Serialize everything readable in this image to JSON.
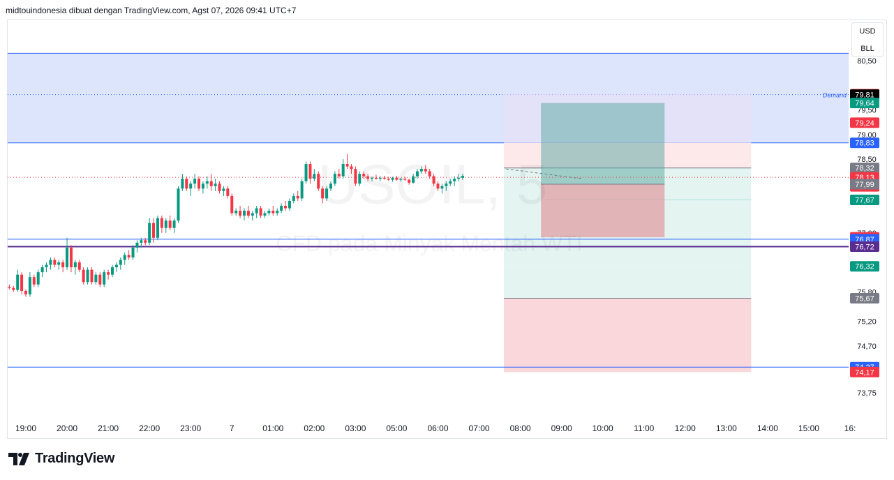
{
  "header": {
    "text": "midtouindonesia dibuat dengan TradingView.com, Agst 07, 2026 09:41 UTC+7"
  },
  "unit_box": {
    "currency": "USD",
    "unit": "BLL"
  },
  "footer": {
    "brand": "TradingView"
  },
  "watermark": {
    "symbol": "USOIL, 5",
    "description": "CFD pada Minyak Mentah WTI"
  },
  "colors": {
    "up": "#089981",
    "down": "#f23645",
    "demand_zone": "#dbe4fd",
    "hline": "#2962ff",
    "purple_line": "#5a2d91",
    "profit": "#b9e4dc",
    "loss": "#f7c9cd"
  },
  "chart_data": {
    "type": "candlestick",
    "symbol": "USOIL",
    "timeframe": "5",
    "price_axis": {
      "ylim": [
        73.4,
        80.95
      ],
      "tick_labels": [
        "80,50",
        "79,50",
        "79,00",
        "78,50",
        "77,00",
        "75,80",
        "75,20",
        "74,70",
        "73,75"
      ],
      "tick_values": [
        80.5,
        79.5,
        79.0,
        78.5,
        77.0,
        75.8,
        75.2,
        74.7,
        73.75
      ]
    },
    "time_axis": {
      "labels": [
        "19:00",
        "20:00",
        "21:00",
        "22:00",
        "23:00",
        "7",
        "01:00",
        "02:00",
        "03:00",
        "05:00",
        "06:00",
        "07:00",
        "08:00",
        "09:00",
        "10:00",
        "11:00",
        "12:00",
        "13:00",
        "14:00",
        "15:00",
        "16:"
      ],
      "hours_since_1900": [
        0,
        1,
        2,
        3,
        4,
        5,
        6,
        7,
        8,
        9,
        10,
        11,
        12,
        13,
        14,
        15,
        16,
        17,
        18,
        19,
        20
      ]
    },
    "price_labels": [
      {
        "text": "79,82",
        "value": 79.82,
        "color": "#f23645"
      },
      {
        "text": "79,81",
        "value": 79.81,
        "color": "#000000"
      },
      {
        "text": "79,64",
        "value": 79.64,
        "color": "#089981"
      },
      {
        "text": "79,24",
        "value": 79.24,
        "color": "#f23645"
      },
      {
        "text": "78,83",
        "value": 78.83,
        "color": "#2962ff"
      },
      {
        "text": "78,32",
        "value": 78.32,
        "color": "#787b86"
      },
      {
        "text": "78,13",
        "value": 78.13,
        "color": "#f23645",
        "sub": "03:56"
      },
      {
        "text": "77,99",
        "value": 77.99,
        "color": "#787b86"
      },
      {
        "text": "77,67",
        "value": 77.67,
        "color": "#089981"
      },
      {
        "text": "76,91",
        "value": 76.91,
        "color": "#f23645"
      },
      {
        "text": "76,87",
        "value": 76.87,
        "color": "#2962ff"
      },
      {
        "text": "76,72",
        "value": 76.72,
        "color": "#5a2d91"
      },
      {
        "text": "76,32",
        "value": 76.32,
        "color": "#089981"
      },
      {
        "text": "75,67",
        "value": 75.67,
        "color": "#787b86"
      },
      {
        "text": "74,27",
        "value": 74.27,
        "color": "#2962ff"
      },
      {
        "text": "74,17",
        "value": 74.17,
        "color": "#f23645"
      }
    ],
    "demand_zone": {
      "label": "Demand",
      "top": 80.65,
      "bottom": 78.83,
      "mid_line": 79.81
    },
    "horizontal_lines": [
      {
        "value": 76.87,
        "color": "#2962ff"
      },
      {
        "value": 76.72,
        "color": "#5a2d91"
      },
      {
        "value": 74.27,
        "color": "#2962ff"
      }
    ],
    "current_price_line": 78.13,
    "positions": [
      {
        "type": "long",
        "start_hours": 11.6,
        "end_hours": 17.6,
        "entry": 78.32,
        "target": 79.82,
        "stop": 74.17,
        "inner_target": 76.32,
        "inner_stop": 75.67
      },
      {
        "type": "long",
        "start_hours": 12.5,
        "end_hours": 15.5,
        "entry": 77.99,
        "target": 79.64,
        "stop": 76.91
      }
    ],
    "candles": [
      [
        -0.4,
        75.9,
        75.95,
        75.85,
        75.88
      ],
      [
        -0.3,
        75.88,
        75.92,
        75.8,
        75.84
      ],
      [
        -0.2,
        75.84,
        76.25,
        75.8,
        76.15
      ],
      [
        -0.1,
        76.15,
        76.2,
        75.75,
        75.82
      ],
      [
        0,
        75.82,
        75.85,
        75.7,
        75.75
      ],
      [
        0.1,
        75.75,
        76.2,
        75.7,
        76.1
      ],
      [
        0.2,
        76.1,
        76.15,
        75.9,
        75.95
      ],
      [
        0.3,
        75.95,
        76.25,
        75.9,
        76.2
      ],
      [
        0.4,
        76.2,
        76.35,
        76.1,
        76.3
      ],
      [
        0.5,
        76.3,
        76.4,
        76.2,
        76.35
      ],
      [
        0.6,
        76.35,
        76.5,
        76.25,
        76.45
      ],
      [
        0.7,
        76.45,
        76.5,
        76.3,
        76.35
      ],
      [
        0.8,
        76.35,
        76.45,
        76.25,
        76.4
      ],
      [
        0.9,
        76.4,
        76.45,
        76.2,
        76.3
      ],
      [
        1.0,
        76.3,
        76.9,
        76.25,
        76.7
      ],
      [
        1.1,
        76.7,
        76.75,
        76.2,
        76.3
      ],
      [
        1.2,
        76.3,
        76.45,
        76.15,
        76.4
      ],
      [
        1.3,
        76.4,
        76.45,
        76.2,
        76.25
      ],
      [
        1.4,
        76.25,
        76.3,
        75.95,
        76.0
      ],
      [
        1.5,
        76.0,
        76.3,
        75.95,
        76.25
      ],
      [
        1.6,
        76.25,
        76.3,
        75.95,
        76.0
      ],
      [
        1.7,
        76.0,
        76.2,
        75.95,
        76.15
      ],
      [
        1.8,
        76.15,
        76.2,
        75.9,
        75.95
      ],
      [
        1.9,
        75.95,
        76.25,
        75.9,
        76.2
      ],
      [
        2.0,
        76.2,
        76.25,
        76.05,
        76.15
      ],
      [
        2.1,
        76.15,
        76.35,
        76.1,
        76.3
      ],
      [
        2.2,
        76.3,
        76.4,
        76.2,
        76.35
      ],
      [
        2.3,
        76.35,
        76.5,
        76.25,
        76.45
      ],
      [
        2.4,
        76.45,
        76.6,
        76.35,
        76.55
      ],
      [
        2.5,
        76.55,
        76.65,
        76.45,
        76.5
      ],
      [
        2.6,
        76.5,
        76.75,
        76.45,
        76.7
      ],
      [
        2.7,
        76.7,
        76.85,
        76.6,
        76.8
      ],
      [
        2.8,
        76.8,
        76.9,
        76.7,
        76.85
      ],
      [
        2.9,
        76.85,
        76.9,
        76.75,
        76.8
      ],
      [
        3.0,
        76.8,
        77.3,
        76.75,
        77.2
      ],
      [
        3.1,
        77.2,
        77.3,
        76.8,
        76.9
      ],
      [
        3.2,
        76.9,
        77.35,
        76.85,
        77.3
      ],
      [
        3.3,
        77.3,
        77.35,
        77.0,
        77.1
      ],
      [
        3.4,
        77.1,
        77.3,
        77.0,
        77.25
      ],
      [
        3.5,
        77.25,
        77.35,
        77.05,
        77.1
      ],
      [
        3.6,
        77.1,
        77.3,
        77.0,
        77.25
      ],
      [
        3.7,
        77.25,
        77.95,
        77.2,
        77.9
      ],
      [
        3.8,
        77.9,
        78.2,
        77.85,
        78.1
      ],
      [
        3.9,
        78.1,
        78.15,
        77.85,
        77.9
      ],
      [
        4.0,
        77.9,
        78.05,
        77.75,
        78.0
      ],
      [
        4.1,
        78.0,
        78.2,
        77.9,
        78.1
      ],
      [
        4.2,
        78.1,
        78.15,
        77.85,
        77.9
      ],
      [
        4.3,
        77.9,
        78.05,
        77.8,
        78.0
      ],
      [
        4.4,
        78.0,
        78.15,
        77.9,
        78.05
      ],
      [
        4.5,
        78.05,
        78.2,
        77.85,
        77.95
      ],
      [
        4.6,
        77.95,
        78.1,
        77.85,
        78.0
      ],
      [
        4.7,
        78.0,
        78.05,
        77.8,
        77.85
      ],
      [
        4.8,
        77.85,
        77.95,
        77.75,
        77.9
      ],
      [
        4.9,
        77.9,
        77.95,
        77.7,
        77.75
      ],
      [
        5.0,
        77.75,
        77.8,
        77.35,
        77.4
      ],
      [
        5.1,
        77.4,
        77.5,
        77.35,
        77.45
      ],
      [
        5.2,
        77.45,
        77.55,
        77.3,
        77.35
      ],
      [
        5.3,
        77.35,
        77.5,
        77.25,
        77.45
      ],
      [
        5.4,
        77.45,
        77.55,
        77.3,
        77.35
      ],
      [
        5.5,
        77.35,
        77.45,
        77.25,
        77.4
      ],
      [
        5.6,
        77.4,
        77.55,
        77.3,
        77.5
      ],
      [
        5.7,
        77.5,
        77.55,
        77.3,
        77.35
      ],
      [
        5.8,
        77.35,
        77.45,
        77.3,
        77.4
      ],
      [
        5.9,
        77.4,
        77.5,
        77.35,
        77.45
      ],
      [
        6.0,
        77.45,
        77.55,
        77.35,
        77.4
      ],
      [
        6.1,
        77.4,
        77.5,
        77.35,
        77.45
      ],
      [
        6.2,
        77.45,
        77.6,
        77.4,
        77.55
      ],
      [
        6.3,
        77.55,
        77.65,
        77.45,
        77.5
      ],
      [
        6.4,
        77.5,
        77.7,
        77.45,
        77.65
      ],
      [
        6.5,
        77.65,
        77.8,
        77.6,
        77.75
      ],
      [
        6.6,
        77.75,
        77.85,
        77.65,
        77.7
      ],
      [
        6.7,
        77.7,
        78.1,
        77.65,
        78.05
      ],
      [
        6.8,
        78.05,
        78.45,
        78.0,
        78.4
      ],
      [
        6.9,
        78.4,
        78.45,
        78.0,
        78.1
      ],
      [
        7.0,
        78.1,
        78.3,
        78.05,
        78.2
      ],
      [
        7.1,
        78.2,
        78.25,
        77.85,
        77.9
      ],
      [
        7.2,
        77.9,
        77.95,
        77.6,
        77.7
      ],
      [
        7.3,
        77.7,
        77.95,
        77.65,
        77.9
      ],
      [
        7.4,
        77.9,
        78.05,
        77.85,
        78.0
      ],
      [
        7.5,
        78.0,
        78.25,
        77.95,
        78.2
      ],
      [
        7.6,
        78.2,
        78.3,
        78.1,
        78.15
      ],
      [
        7.7,
        78.15,
        78.5,
        78.1,
        78.4
      ],
      [
        7.8,
        78.4,
        78.6,
        78.3,
        78.35
      ],
      [
        7.9,
        78.35,
        78.4,
        78.2,
        78.3
      ],
      [
        8.0,
        78.3,
        78.35,
        77.95,
        78.0
      ],
      [
        8.1,
        78.0,
        78.25,
        77.95,
        78.2
      ],
      [
        8.2,
        78.2,
        78.25,
        78.1,
        78.15
      ],
      [
        8.3,
        78.15,
        78.2,
        78.05,
        78.1
      ],
      [
        8.4,
        78.1,
        78.15,
        78.05,
        78.12
      ],
      [
        8.5,
        78.12,
        78.18,
        78.08,
        78.1
      ],
      [
        8.6,
        78.1,
        78.15,
        78.05,
        78.12
      ],
      [
        8.7,
        78.12,
        78.16,
        78.08,
        78.1
      ],
      [
        8.8,
        78.1,
        78.14,
        78.06,
        78.08
      ],
      [
        8.9,
        78.08,
        78.14,
        78.04,
        78.12
      ],
      [
        9.0,
        78.12,
        78.16,
        78.06,
        78.08
      ],
      [
        9.1,
        78.08,
        78.12,
        78.04,
        78.1
      ],
      [
        9.2,
        78.1,
        78.14,
        78.06,
        78.08
      ],
      [
        9.3,
        78.08,
        78.1,
        77.98,
        78.02
      ],
      [
        9.4,
        78.02,
        78.2,
        78.0,
        78.15
      ],
      [
        9.5,
        78.15,
        78.3,
        78.1,
        78.25
      ],
      [
        9.6,
        78.25,
        78.35,
        78.2,
        78.3
      ],
      [
        9.7,
        78.3,
        78.38,
        78.2,
        78.25
      ],
      [
        9.8,
        78.25,
        78.3,
        78.1,
        78.15
      ],
      [
        9.9,
        78.15,
        78.2,
        77.95,
        78.0
      ],
      [
        10.0,
        78.0,
        78.05,
        77.85,
        77.9
      ],
      [
        10.1,
        77.9,
        78.0,
        77.8,
        77.95
      ],
      [
        10.2,
        77.95,
        78.05,
        77.85,
        78.0
      ],
      [
        10.3,
        78.0,
        78.1,
        77.95,
        78.05
      ],
      [
        10.4,
        78.05,
        78.15,
        77.95,
        78.1
      ],
      [
        10.5,
        78.1,
        78.2,
        78.05,
        78.12
      ],
      [
        10.6,
        78.12,
        78.2,
        78.08,
        78.16
      ]
    ]
  }
}
